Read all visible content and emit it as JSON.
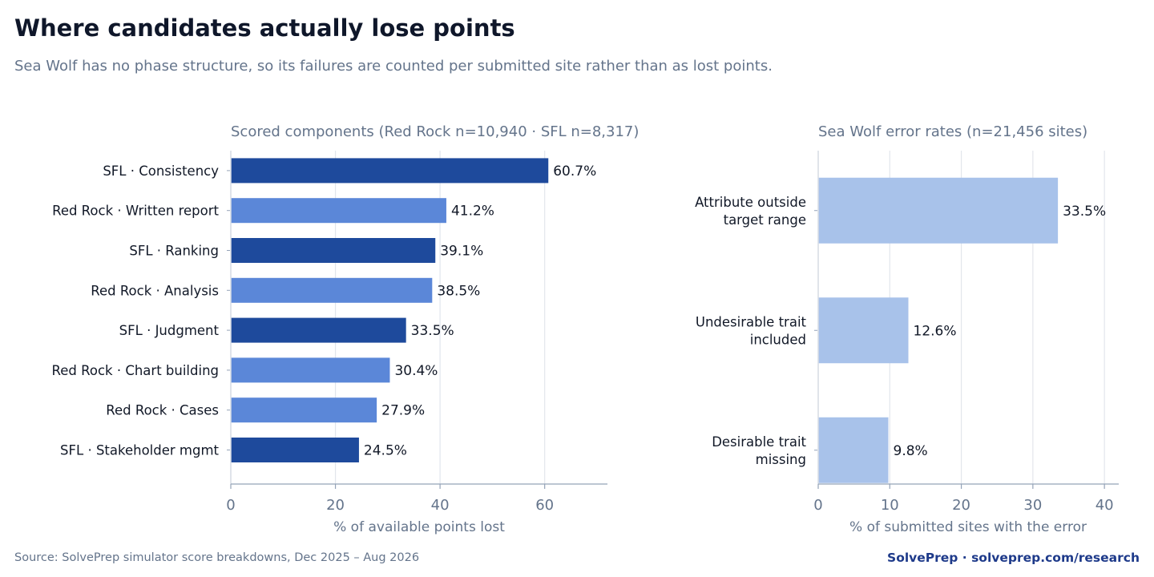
{
  "header": {
    "title": "Where candidates actually lose points",
    "subtitle": "Sea Wolf has no phase structure, so its failures are counted per submitted site rather than as lost points."
  },
  "footer": {
    "source": "Source: SolvePrep simulator score breakdowns, Dec 2025 – Aug 2026",
    "brand": "SolvePrep  ·  solveprep.com/research"
  },
  "chart_data": [
    {
      "type": "bar",
      "orientation": "horizontal",
      "title": "Scored components  (Red Rock n=10,940 · SFL n=8,317)",
      "xlabel": "% of available points lost",
      "ylabel": "",
      "xlim": [
        0,
        72
      ],
      "xticks": [
        0,
        20,
        40,
        60
      ],
      "grid": true,
      "categories": [
        "SFL · Consistency",
        "Red Rock · Written report",
        "SFL · Ranking",
        "Red Rock · Analysis",
        "SFL · Judgment",
        "Red Rock · Chart building",
        "Red Rock · Cases",
        "SFL · Stakeholder mgmt"
      ],
      "category_lines": [
        [
          "SFL · Consistency"
        ],
        [
          "Red Rock · Written report"
        ],
        [
          "SFL · Ranking"
        ],
        [
          "Red Rock · Analysis"
        ],
        [
          "SFL · Judgment"
        ],
        [
          "Red Rock · Chart building"
        ],
        [
          "Red Rock · Cases"
        ],
        [
          "SFL · Stakeholder mgmt"
        ]
      ],
      "values": [
        60.7,
        41.2,
        39.1,
        38.5,
        33.5,
        30.4,
        27.9,
        24.5
      ],
      "labels": [
        "60.7%",
        "41.2%",
        "39.1%",
        "38.5%",
        "33.5%",
        "30.4%",
        "27.9%",
        "24.5%"
      ],
      "colors": [
        "#1e4a9c",
        "#5b87d8",
        "#1e4a9c",
        "#5b87d8",
        "#1e4a9c",
        "#5b87d8",
        "#5b87d8",
        "#1e4a9c"
      ]
    },
    {
      "type": "bar",
      "orientation": "horizontal",
      "title": "Sea Wolf error rates  (n=21,456 sites)",
      "xlabel": "% of submitted sites with the error",
      "ylabel": "",
      "xlim": [
        0,
        42
      ],
      "xticks": [
        0,
        10,
        20,
        30,
        40
      ],
      "grid": true,
      "categories": [
        "Attribute outside target range",
        "Undesirable trait included",
        "Desirable trait missing"
      ],
      "category_lines": [
        [
          "Attribute outside",
          "target range"
        ],
        [
          "Undesirable trait",
          "included"
        ],
        [
          "Desirable trait",
          "missing"
        ]
      ],
      "values": [
        33.5,
        12.6,
        9.8
      ],
      "labels": [
        "33.5%",
        "12.6%",
        "9.8%"
      ],
      "colors": [
        "#a8c2ea",
        "#a8c2ea",
        "#a8c2ea"
      ]
    }
  ]
}
